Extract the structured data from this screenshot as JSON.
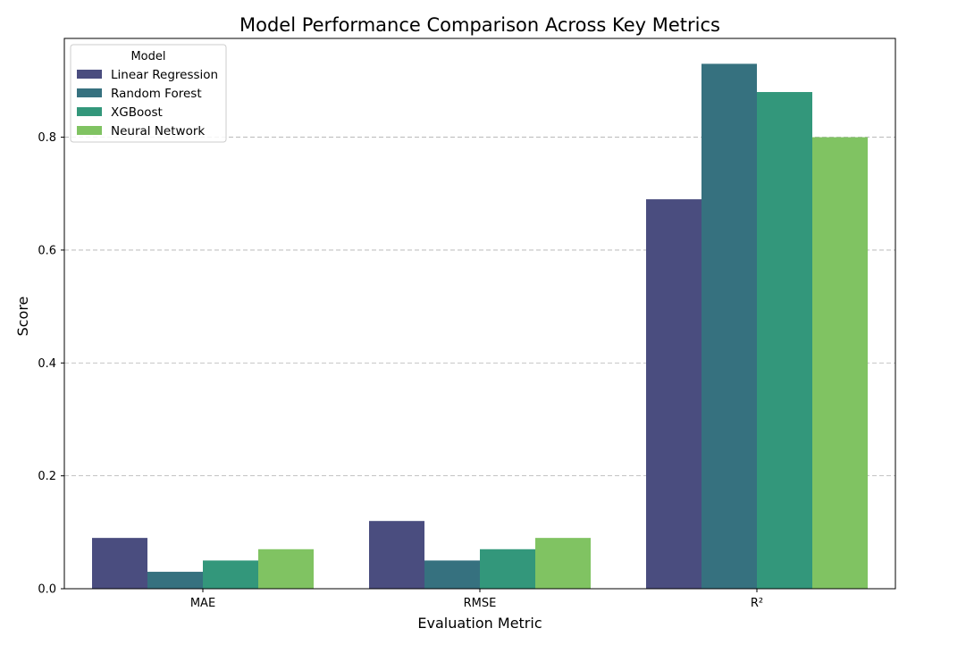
{
  "chart_data": {
    "type": "bar",
    "title": "Model Performance Comparison Across Key Metrics",
    "xlabel": "Evaluation Metric",
    "ylabel": "Score",
    "categories": [
      "MAE",
      "RMSE",
      "R²"
    ],
    "ylim": [
      0,
      0.975
    ],
    "yticks": [
      0.0,
      0.2,
      0.4,
      0.6,
      0.8
    ],
    "ytick_labels": [
      "0.0",
      "0.2",
      "0.4",
      "0.6",
      "0.8"
    ],
    "grid": "y-dashed",
    "legend": {
      "title": "Model",
      "placement": "top-left"
    },
    "series": [
      {
        "name": "Linear Regression",
        "color": "#482677",
        "fill": "#4a4d7f",
        "values": [
          0.09,
          0.12,
          0.69
        ]
      },
      {
        "name": "Random Forest",
        "color": "#366f80",
        "fill": "#36717f",
        "values": [
          0.03,
          0.05,
          0.93
        ]
      },
      {
        "name": "XGBoost",
        "color": "#33977b",
        "fill": "#33977b",
        "values": [
          0.05,
          0.07,
          0.88
        ]
      },
      {
        "name": "Neural Network",
        "color": "#80c362",
        "fill": "#80c362",
        "values": [
          0.07,
          0.09,
          0.8
        ]
      }
    ]
  }
}
